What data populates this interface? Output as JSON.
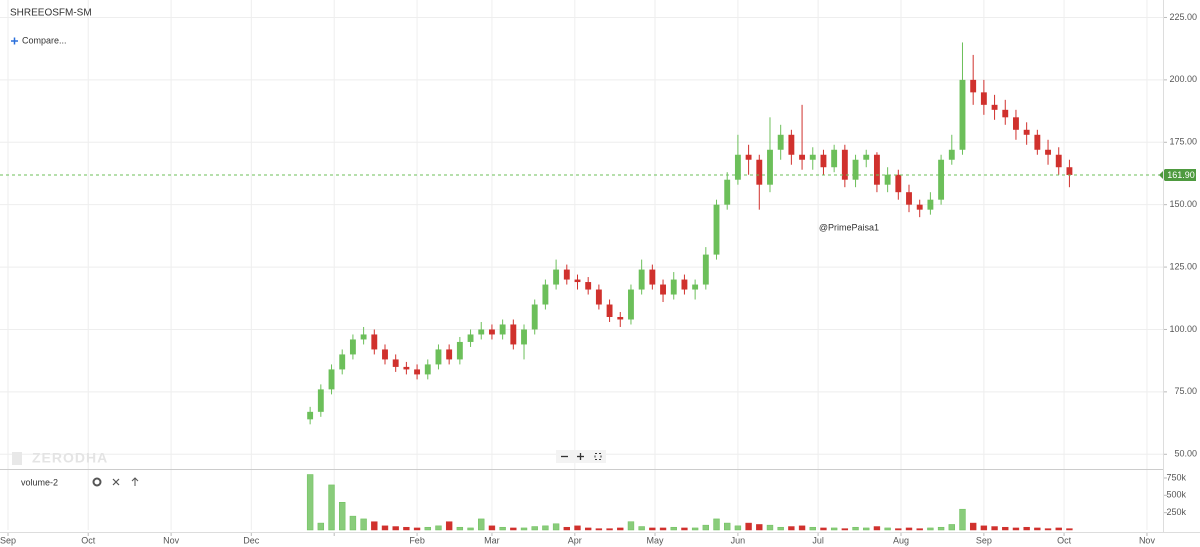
{
  "chart_data": {
    "type": "candlestick",
    "title": "SHREEOSFM-SM",
    "compare_label": "Compare...",
    "annotation": "@PrimePaisa1",
    "watermark": "ZERODHA",
    "up_color": "#6cbf5a",
    "down_color": "#d0312d",
    "grid": true,
    "xlim": [
      -3,
      432
    ],
    "xticks": [
      {
        "value": 0,
        "label": "Sep"
      },
      {
        "value": 30,
        "label": "Oct"
      },
      {
        "value": 61,
        "label": "Nov"
      },
      {
        "value": 91,
        "label": "Dec"
      },
      {
        "value": 122,
        "label": null
      },
      {
        "value": 153,
        "label": "Feb"
      },
      {
        "value": 181,
        "label": "Mar"
      },
      {
        "value": 212,
        "label": "Apr"
      },
      {
        "value": 242,
        "label": "May"
      },
      {
        "value": 273,
        "label": "Jun"
      },
      {
        "value": 303,
        "label": "Jul"
      },
      {
        "value": 334,
        "label": "Aug"
      },
      {
        "value": 365,
        "label": "Sep"
      },
      {
        "value": 395,
        "label": "Oct"
      },
      {
        "value": 426,
        "label": "Nov"
      }
    ],
    "ylim": [
      44.5,
      232
    ],
    "yticks": [
      {
        "value": 50,
        "label": "50.00"
      },
      {
        "value": 75,
        "label": "75.00"
      },
      {
        "value": 100,
        "label": "100.00"
      },
      {
        "value": 125,
        "label": "125.00"
      },
      {
        "value": 150,
        "label": "150.00"
      },
      {
        "value": 175,
        "label": "175.00"
      },
      {
        "value": 200,
        "label": "200.00"
      },
      {
        "value": 225,
        "label": "225.00"
      }
    ],
    "last_price": {
      "value": 161.9,
      "label": "161.90"
    },
    "x": [
      113,
      117,
      121,
      125,
      129,
      133,
      137,
      141,
      145,
      149,
      153,
      157,
      161,
      165,
      169,
      173,
      177,
      181,
      185,
      189,
      193,
      197,
      201,
      205,
      209,
      213,
      217,
      221,
      225,
      229,
      233,
      237,
      241,
      245,
      249,
      253,
      257,
      261,
      265,
      269,
      273,
      277,
      281,
      285,
      289,
      293,
      297,
      301,
      305,
      309,
      313,
      317,
      321,
      325,
      329,
      333,
      337,
      341,
      345,
      349,
      353,
      357,
      361,
      365,
      369,
      373,
      377,
      381,
      385,
      389,
      393,
      397
    ],
    "open": [
      64,
      67,
      76,
      84,
      90,
      96,
      98,
      92,
      88,
      85,
      84,
      82,
      86,
      92,
      88,
      95,
      98,
      100,
      98,
      102,
      94,
      100,
      110,
      118,
      124,
      120,
      119,
      116,
      110,
      105,
      104,
      116,
      124,
      118,
      114,
      120,
      116,
      118,
      130,
      150,
      160,
      170,
      168,
      158,
      172,
      178,
      170,
      168,
      170,
      165,
      172,
      160,
      168,
      170,
      158,
      162,
      155,
      150,
      148,
      152,
      168,
      172,
      200,
      195,
      190,
      188,
      185,
      180,
      178,
      172,
      170,
      165
    ],
    "high": [
      69,
      78,
      86,
      92,
      98,
      101,
      100,
      94,
      90,
      87,
      86,
      88,
      94,
      94,
      97,
      100,
      103,
      102,
      104,
      104,
      102,
      112,
      120,
      128,
      126,
      122,
      121,
      118,
      112,
      107,
      118,
      128,
      126,
      120,
      123,
      122,
      120,
      133,
      152,
      163,
      178,
      174,
      170,
      185,
      182,
      180,
      190,
      173,
      172,
      174,
      174,
      170,
      172,
      171,
      165,
      164,
      158,
      152,
      155,
      170,
      178,
      215,
      210,
      200,
      194,
      192,
      188,
      183,
      180,
      176,
      173,
      168
    ],
    "low": [
      62,
      65,
      74,
      82,
      88,
      94,
      90,
      86,
      83,
      82,
      80,
      80,
      84,
      86,
      86,
      93,
      96,
      96,
      96,
      92,
      88,
      98,
      108,
      116,
      118,
      116,
      114,
      108,
      103,
      101,
      102,
      114,
      116,
      111,
      112,
      114,
      112,
      116,
      128,
      148,
      158,
      162,
      148,
      155,
      168,
      166,
      164,
      164,
      162,
      163,
      157,
      157,
      165,
      155,
      155,
      152,
      147,
      145,
      146,
      150,
      166,
      170,
      190,
      186,
      184,
      182,
      176,
      174,
      170,
      166,
      162,
      157
    ],
    "close": [
      67,
      76,
      84,
      90,
      96,
      98,
      92,
      88,
      85,
      84,
      82,
      86,
      92,
      88,
      95,
      98,
      100,
      98,
      102,
      94,
      100,
      110,
      118,
      124,
      120,
      119,
      116,
      110,
      105,
      104,
      116,
      124,
      118,
      114,
      120,
      116,
      118,
      130,
      150,
      160,
      170,
      168,
      158,
      172,
      178,
      170,
      168,
      170,
      165,
      172,
      160,
      168,
      170,
      158,
      162,
      155,
      150,
      148,
      152,
      168,
      172,
      200,
      195,
      190,
      188,
      185,
      180,
      178,
      172,
      170,
      165,
      161.9
    ],
    "volume": {
      "name": "volume-2",
      "ylim": [
        0,
        865000
      ],
      "yticks": [
        {
          "value": 250000,
          "label": "250k"
        },
        {
          "value": 500000,
          "label": "500k"
        },
        {
          "value": 750000,
          "label": "750k"
        }
      ],
      "values": [
        800000,
        100000,
        650000,
        400000,
        200000,
        160000,
        120000,
        60000,
        50000,
        40000,
        30000,
        40000,
        60000,
        120000,
        40000,
        30000,
        160000,
        60000,
        40000,
        30000,
        30000,
        50000,
        60000,
        90000,
        40000,
        60000,
        30000,
        20000,
        20000,
        30000,
        120000,
        50000,
        30000,
        30000,
        40000,
        30000,
        30000,
        70000,
        160000,
        100000,
        60000,
        100000,
        80000,
        70000,
        40000,
        50000,
        60000,
        40000,
        30000,
        30000,
        20000,
        40000,
        30000,
        50000,
        30000,
        20000,
        30000,
        20000,
        30000,
        40000,
        80000,
        300000,
        100000,
        60000,
        50000,
        40000,
        30000,
        40000,
        30000,
        20000,
        30000,
        20000
      ]
    }
  }
}
